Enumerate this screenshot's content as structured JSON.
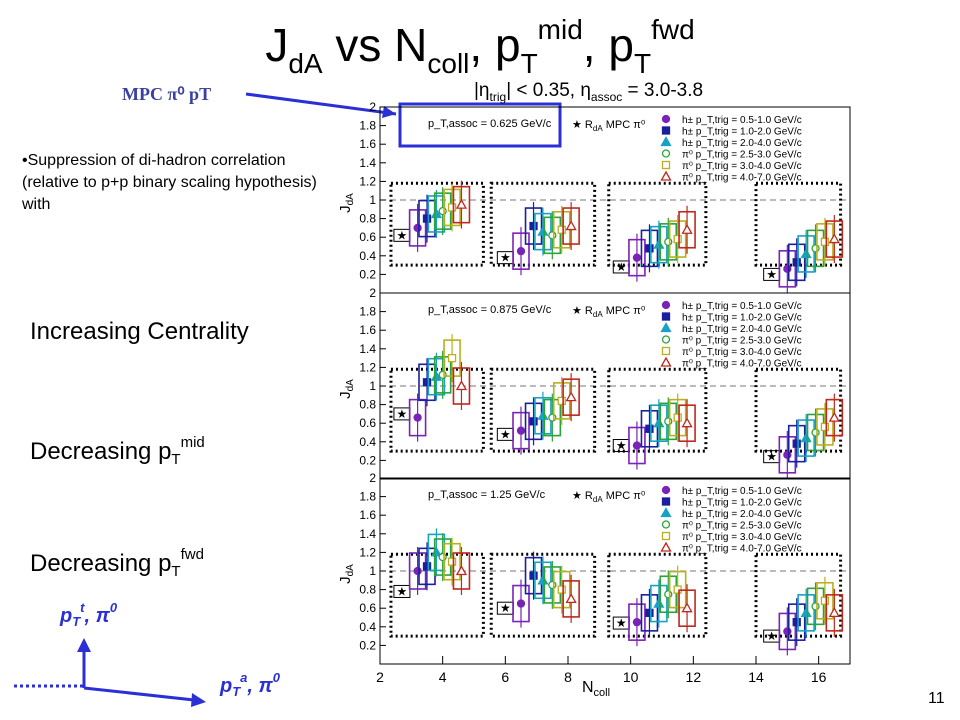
{
  "slide": {
    "title_main": "J",
    "title_sub1": "dA",
    "title_vs": " vs N",
    "title_sub2": "coll",
    "title_p1": ", p",
    "title_sub3": "T",
    "title_sup1": "mid",
    "title_p2": ", p",
    "title_sub4": "T",
    "title_sup2": "fwd",
    "mpc_label": "MPC π⁰ pT",
    "bullet": "•Suppression of di-hadron correlation (relative to p+p binary scaling hypothesis) with",
    "item1": "Increasing Centrality",
    "item2_main": "Decreasing p",
    "item2_sub": "T",
    "item2_sup": "mid",
    "item3_main": "Decreasing p",
    "item3_sub": "T",
    "item3_sup": "fwd",
    "ptt_main": "p",
    "ptt_sub": "T",
    "ptt_sup": "t",
    "ptt_rest": ", π",
    "ptt_sup2": "0",
    "pta_main": "p",
    "pta_sub": "T",
    "pta_sup": "a",
    "pta_rest": ", π",
    "pta_sup2": "0",
    "page_number": "11"
  },
  "plot_header": {
    "eta_trig": "|η",
    "eta_trig_sub": "trig",
    "eta_rest": "| < 0.35, η",
    "eta_assoc_sub": "assoc",
    "eta_end": " = 3.0-3.8"
  },
  "chart_data": {
    "type": "scatter",
    "xlabel": "N_coll",
    "ylabel": "J_dA",
    "xlim": [
      2,
      17
    ],
    "ylim": [
      0,
      2
    ],
    "x_ticks": [
      "2",
      "4",
      "6",
      "8",
      "10",
      "12",
      "14",
      "16"
    ],
    "y_ticks": [
      "0.2",
      "0.4",
      "0.6",
      "0.8",
      "1",
      "1.2",
      "1.4",
      "1.6",
      "1.8",
      "2"
    ],
    "legend": {
      "rda_label": "R",
      "rda_sub": "dA",
      "rda_rest": " MPC π⁰",
      "entries": [
        {
          "species": "h±",
          "range": "p_T,trig = 0.5-1.0 GeV/c",
          "color": "#7b22b8",
          "marker": "circle"
        },
        {
          "species": "h±",
          "range": "p_T,trig = 1.0-2.0 GeV/c",
          "color": "#1a1f9e",
          "marker": "square"
        },
        {
          "species": "h±",
          "range": "p_T,trig = 2.0-4.0 GeV/c",
          "color": "#17a2c4",
          "marker": "triangle"
        },
        {
          "species": "π⁰",
          "range": "p_T,trig = 2.5-3.0 GeV/c",
          "color": "#2aa33a",
          "marker": "open-circle"
        },
        {
          "species": "π⁰",
          "range": "p_T,trig = 3.0-4.0 GeV/c",
          "color": "#b8b01e",
          "marker": "open-square"
        },
        {
          "species": "π⁰",
          "range": "p_T,trig = 4.0-7.0 GeV/c",
          "color": "#c0281e",
          "marker": "open-triangle"
        }
      ]
    },
    "panels": [
      {
        "pt_assoc": "p_T,assoc = 0.625 GeV/c",
        "groups": [
          {
            "rda_x": 2.7,
            "rda_y": 0.62,
            "series_x": [
              3.2,
              3.5,
              3.8,
              4.0,
              4.3,
              4.6
            ],
            "series_y": [
              0.7,
              0.8,
              0.85,
              0.88,
              0.92,
              0.95
            ]
          },
          {
            "rda_x": 6.0,
            "rda_y": 0.38,
            "series_x": [
              6.5,
              6.9,
              7.2,
              7.5,
              7.8,
              8.1
            ],
            "series_y": [
              0.45,
              0.72,
              0.66,
              0.62,
              0.68,
              0.72
            ]
          },
          {
            "rda_x": 9.7,
            "rda_y": 0.28,
            "series_x": [
              10.2,
              10.6,
              10.9,
              11.2,
              11.5,
              11.8
            ],
            "series_y": [
              0.38,
              0.48,
              0.52,
              0.55,
              0.58,
              0.68
            ]
          },
          {
            "rda_x": 14.5,
            "rda_y": 0.2,
            "series_x": [
              15.0,
              15.3,
              15.6,
              15.9,
              16.2,
              16.5
            ],
            "series_y": [
              0.26,
              0.33,
              0.42,
              0.48,
              0.55,
              0.58
            ]
          }
        ]
      },
      {
        "pt_assoc": "p_T,assoc = 0.875 GeV/c",
        "groups": [
          {
            "rda_x": 2.7,
            "rda_y": 0.7,
            "series_x": [
              3.2,
              3.5,
              3.8,
              4.0,
              4.3,
              4.6
            ],
            "series_y": [
              0.66,
              1.04,
              1.1,
              1.12,
              1.3,
              1.0
            ]
          },
          {
            "rda_x": 6.0,
            "rda_y": 0.48,
            "series_x": [
              6.5,
              6.9,
              7.2,
              7.5,
              7.8,
              8.1
            ],
            "series_y": [
              0.52,
              0.62,
              0.68,
              0.66,
              0.84,
              0.88
            ]
          },
          {
            "rda_x": 9.7,
            "rda_y": 0.36,
            "series_x": [
              10.2,
              10.6,
              10.9,
              11.2,
              11.5,
              11.8
            ],
            "series_y": [
              0.36,
              0.54,
              0.6,
              0.62,
              0.66,
              0.6
            ]
          },
          {
            "rda_x": 14.5,
            "rda_y": 0.24,
            "series_x": [
              15.0,
              15.3,
              15.6,
              15.9,
              16.2,
              16.5
            ],
            "series_y": [
              0.26,
              0.38,
              0.44,
              0.5,
              0.56,
              0.66
            ]
          }
        ]
      },
      {
        "pt_assoc": "p_T,assoc = 1.25 GeV/c",
        "groups": [
          {
            "rda_x": 2.7,
            "rda_y": 0.78,
            "series_x": [
              3.2,
              3.5,
              3.8,
              4.0,
              4.3,
              4.6
            ],
            "series_y": [
              1.0,
              1.05,
              1.2,
              1.15,
              1.1,
              1.0
            ]
          },
          {
            "rda_x": 6.0,
            "rda_y": 0.6,
            "series_x": [
              6.5,
              6.9,
              7.2,
              7.5,
              7.8,
              8.1
            ],
            "series_y": [
              0.65,
              0.95,
              0.9,
              0.85,
              0.8,
              0.7
            ]
          },
          {
            "rda_x": 9.7,
            "rda_y": 0.44,
            "series_x": [
              10.2,
              10.6,
              10.9,
              11.2,
              11.5,
              11.8
            ],
            "series_y": [
              0.45,
              0.55,
              0.65,
              0.75,
              0.8,
              0.6
            ]
          },
          {
            "rda_x": 14.5,
            "rda_y": 0.3,
            "series_x": [
              15.0,
              15.3,
              15.6,
              15.9,
              16.2,
              16.5
            ],
            "series_y": [
              0.35,
              0.45,
              0.55,
              0.62,
              0.68,
              0.55
            ]
          }
        ]
      }
    ]
  }
}
